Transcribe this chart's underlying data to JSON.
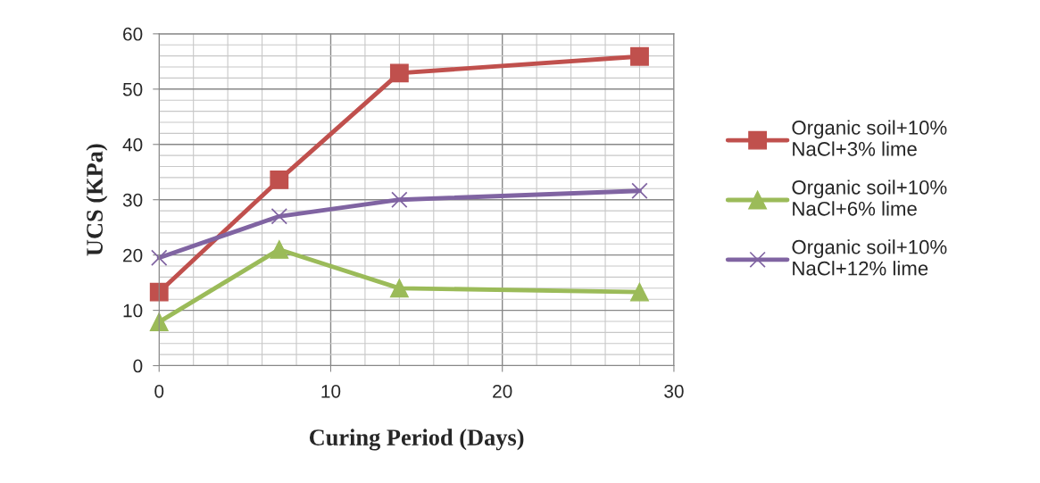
{
  "chart_data": {
    "type": "line",
    "xlabel": "Curing Period (Days)",
    "ylabel": "UCS (KPa)",
    "x": [
      0,
      7,
      14,
      28
    ],
    "series": [
      {
        "name": "Organic soil+10%\nNaCl+3% lime",
        "color": "#c0504d",
        "marker": "square",
        "values": [
          13.3,
          33.6,
          52.9,
          55.9
        ]
      },
      {
        "name": "Organic soil+10%\nNaCl+6% lime",
        "color": "#9bbb59",
        "marker": "triangle",
        "values": [
          7.9,
          21,
          14,
          13.3
        ]
      },
      {
        "name": "Organic soil+10%\nNaCl+12% lime",
        "color": "#8064a2",
        "marker": "cross",
        "values": [
          19.5,
          27,
          30,
          31.6
        ]
      }
    ],
    "xlim": [
      0,
      30
    ],
    "xticks": [
      0,
      10,
      20,
      30
    ],
    "ylim": [
      0,
      60
    ],
    "yticks": [
      0,
      10,
      20,
      30,
      40,
      50,
      60
    ],
    "grid": true,
    "legend": "right",
    "line_style": "solid"
  }
}
